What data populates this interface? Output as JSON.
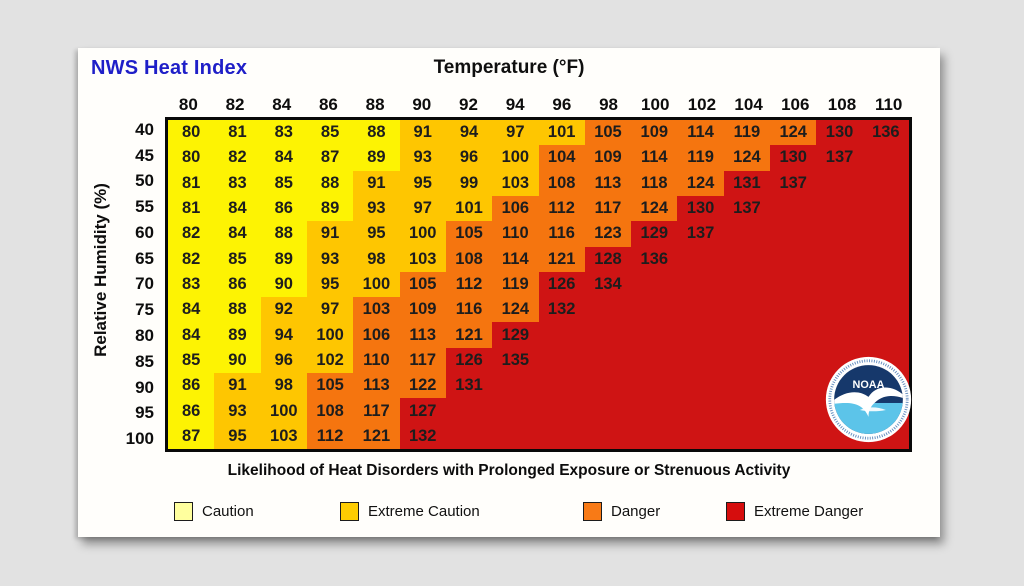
{
  "window": {
    "background": "#E2E2E2",
    "card_background": "#FFFEFB"
  },
  "header": {
    "title": "NWS Heat Index",
    "title_color": "#1F1FC8",
    "temperature_axis_label": "Temperature (°F)"
  },
  "y_axis_label": "Relative Humidity (%)",
  "caption": "Likelihood of Heat Disorders with Prolonged Exposure or Strenuous Activity",
  "legend": {
    "items": [
      {
        "key": "c",
        "label": "Caution",
        "color": "#FFFF9E"
      },
      {
        "key": "e",
        "label": "Extreme Caution",
        "color": "#FECD02"
      },
      {
        "key": "d",
        "label": "Danger",
        "color": "#F87A16"
      },
      {
        "key": "r",
        "label": "Extreme Danger",
        "color": "#D60D0D"
      }
    ]
  },
  "logo": {
    "name": "noaa-logo",
    "text": "NOAA",
    "ring_color": "#4A7AB5",
    "dark_blue": "#16386B",
    "light_blue": "#5CC4E9"
  },
  "chart_data": {
    "type": "heatmap",
    "title": "NWS Heat Index",
    "xlabel": "Temperature (°F)",
    "ylabel": "Relative Humidity (%)",
    "x_categories": [
      80,
      82,
      84,
      86,
      88,
      90,
      92,
      94,
      96,
      98,
      100,
      102,
      104,
      106,
      108,
      110
    ],
    "y_categories": [
      40,
      45,
      50,
      55,
      60,
      65,
      70,
      75,
      80,
      85,
      90,
      95,
      100
    ],
    "class_names": {
      "c": "Caution",
      "e": "Extreme Caution",
      "d": "Danger",
      "r": "Extreme Danger"
    },
    "cell_colors": {
      "c": "#FDF303",
      "e": "#FEC601",
      "d": "#F5750F",
      "r": "#CF1414"
    },
    "rows": [
      {
        "rh": 40,
        "values": [
          80,
          81,
          83,
          85,
          88,
          91,
          94,
          97,
          101,
          105,
          109,
          114,
          119,
          124,
          130,
          136
        ],
        "classes": "ccccceeeedddddrr"
      },
      {
        "rh": 45,
        "values": [
          80,
          82,
          84,
          87,
          89,
          93,
          96,
          100,
          104,
          109,
          114,
          119,
          124,
          130,
          137
        ],
        "classes": "ccccceeedddddrr"
      },
      {
        "rh": 50,
        "values": [
          81,
          83,
          85,
          88,
          91,
          95,
          99,
          103,
          108,
          113,
          118,
          124,
          131,
          137
        ],
        "classes": "cccceeeeddddrr"
      },
      {
        "rh": 55,
        "values": [
          81,
          84,
          86,
          89,
          93,
          97,
          101,
          106,
          112,
          117,
          124,
          130,
          137
        ],
        "classes": "cccceeeddddrr"
      },
      {
        "rh": 60,
        "values": [
          82,
          84,
          88,
          91,
          95,
          100,
          105,
          110,
          116,
          123,
          129,
          137
        ],
        "classes": "ccceeeddddrr"
      },
      {
        "rh": 65,
        "values": [
          82,
          85,
          89,
          93,
          98,
          103,
          108,
          114,
          121,
          128,
          136
        ],
        "classes": "ccceeedddrr"
      },
      {
        "rh": 70,
        "values": [
          83,
          86,
          90,
          95,
          100,
          105,
          112,
          119,
          126,
          134
        ],
        "classes": "ccceedddrr"
      },
      {
        "rh": 75,
        "values": [
          84,
          88,
          92,
          97,
          103,
          109,
          116,
          124,
          132
        ],
        "classes": "cceeddddr"
      },
      {
        "rh": 80,
        "values": [
          84,
          89,
          94,
          100,
          106,
          113,
          121,
          129
        ],
        "classes": "cceedddr"
      },
      {
        "rh": 85,
        "values": [
          85,
          90,
          96,
          102,
          110,
          117,
          126,
          135
        ],
        "classes": "cceeddrr"
      },
      {
        "rh": 90,
        "values": [
          86,
          91,
          98,
          105,
          113,
          122,
          131
        ],
        "classes": "ceedddr"
      },
      {
        "rh": 95,
        "values": [
          86,
          93,
          100,
          108,
          117,
          127
        ],
        "classes": "ceeddr"
      },
      {
        "rh": 100,
        "values": [
          87,
          95,
          103,
          112,
          121,
          132
        ],
        "classes": "ceeddr"
      }
    ]
  }
}
